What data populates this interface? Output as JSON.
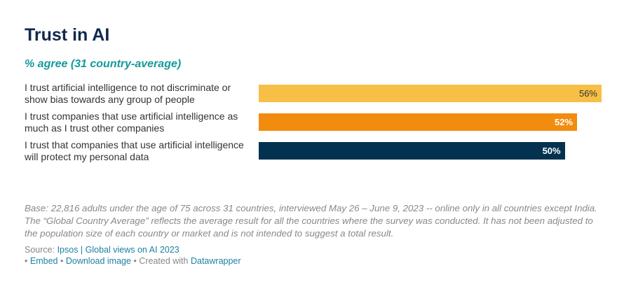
{
  "chart_data": {
    "type": "bar",
    "title": "Trust in AI",
    "subtitle": "% agree (31 country-average)",
    "categories": [
      "I trust artificial intelligence to not discriminate or show bias towards any group of people",
      "I trust companies that use artificial intelligence as much as I trust other companies",
      "I trust that companies that use artificial intelligence will protect my personal data"
    ],
    "values": [
      56,
      52,
      50
    ],
    "value_labels": [
      "56%",
      "52%",
      "50%"
    ],
    "colors": [
      "#f7bf45",
      "#f28c0f",
      "#033150"
    ]
  },
  "footer": {
    "note": "Base: 22,816 adults under the age of 75 across 31 countries, interviewed May 26 – June 9, 2023 -- online only in all countries except India. The “Global Country Average” reflects the average result for all the countries where the survey was conducted. It has not been adjusted to the population size of each country or market and is not intended to suggest a total result.",
    "source_label": "Source:",
    "source": "Ipsos | Global views on AI 2023",
    "separator": "•",
    "links": [
      "Embed",
      "Download image"
    ],
    "created_with": "Created with",
    "tool": "Datawrapper"
  }
}
